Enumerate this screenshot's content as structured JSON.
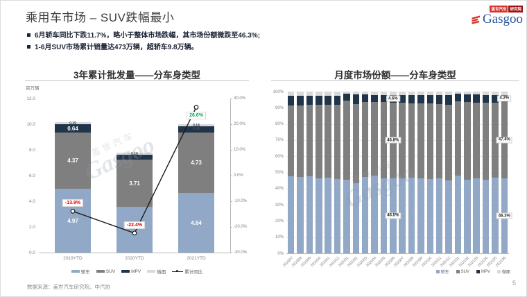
{
  "slide": {
    "title": "乘用车市场 – SUV跌幅最小",
    "bullets": [
      "6月轿车同比下跌11.7%，略小于整体市场跌幅，其市场份额微跌至46.3%;",
      "1-6月SUV市场累计销量达473万辆，超轿车9.8万辆。"
    ],
    "logo": {
      "brand": "Gasgoo",
      "tag1": "盖世汽车",
      "tag2": "研究院"
    },
    "watermark_cn": "盖世汽车",
    "watermark_en": "Gasgoo",
    "footer": {
      "source": "数据来源：盖世汽车研究院、中汽协",
      "page": "5"
    }
  },
  "colors": {
    "sedan": "#91a8c6",
    "suv": "#7f7f7f",
    "mpv": "#20344a",
    "minivan": "#d9d9d9",
    "line": "#1a1a1a",
    "negative": "#e00000",
    "positive": "#00a551",
    "axis": "#b7b7b7",
    "gridline": "#ececec"
  },
  "chart_data": [
    {
      "type": "bar",
      "subtype": "stacked-with-line",
      "title": "3年累计批发量——分车身类型",
      "ylabel": "百万辆",
      "categories": [
        "2019YTD",
        "2020YTD",
        "2021YTD"
      ],
      "series": [
        {
          "name": "轿车",
          "color": "#91a8c6",
          "values": [
            4.97,
            3.55,
            4.64
          ],
          "labels": [
            "4.97",
            "",
            "4.64"
          ]
        },
        {
          "name": "SUV",
          "color": "#7f7f7f",
          "values": [
            4.37,
            3.71,
            4.73
          ],
          "labels": [
            "4.37",
            "3.71",
            "4.73"
          ]
        },
        {
          "name": "MPV",
          "color": "#20344a",
          "values": [
            0.64,
            0.34,
            0.45
          ],
          "labels": [
            "0.64",
            "0.34",
            "0.45"
          ]
        },
        {
          "name": "微面",
          "color": "#d9d9d9",
          "values": [
            0.19,
            0.16,
            0.18
          ],
          "labels": [
            "0.19",
            "0.16",
            "0.18"
          ]
        }
      ],
      "line_series": {
        "name": "累计同比",
        "values": [
          -13.9,
          -22.4,
          26.6
        ],
        "labels": [
          "-13.9%",
          "-22.4%",
          "26.6%"
        ]
      },
      "ylim": [
        0,
        12
      ],
      "y2lim": [
        -30,
        30
      ],
      "yticks": [
        "12.0",
        "10.0",
        "8.0",
        "6.0",
        "4.0",
        "2.0",
        "0.0"
      ],
      "y2ticks": [
        "30.0%",
        "20.0%",
        "10.0%",
        "0.0%",
        "-10.0%",
        "-20.0%",
        "-30.0%"
      ],
      "legend_position": "bottom",
      "grid": false
    },
    {
      "type": "bar",
      "subtype": "stacked-100pct",
      "title": "月度市场份额——分车身类型",
      "categories": [
        "201907",
        "201908",
        "201909",
        "201910",
        "201911",
        "201912",
        "202001",
        "202002",
        "202003",
        "202004",
        "202005",
        "202006",
        "202007",
        "202008",
        "202009",
        "202010",
        "202011",
        "202012",
        "202101",
        "202102",
        "202103",
        "202104",
        "202105",
        "202106"
      ],
      "series": [
        {
          "name": "轿车",
          "color": "#91a8c6",
          "values": [
            47.5,
            47.0,
            47.8,
            46.4,
            46.7,
            46.0,
            45.6,
            43.2,
            47.1,
            47.9,
            46.4,
            46.5,
            46.4,
            46.6,
            46.2,
            46.0,
            46.3,
            44.9,
            47.9,
            45.6,
            46.4,
            45.4,
            46.9,
            46.3
          ]
        },
        {
          "name": "SUV",
          "color": "#7f7f7f",
          "values": [
            44.0,
            44.6,
            43.9,
            45.4,
            45.1,
            45.7,
            48.7,
            49.1,
            46.4,
            45.7,
            47.0,
            46.8,
            46.7,
            46.2,
            46.4,
            46.6,
            46.1,
            47.0,
            46.2,
            47.9,
            46.9,
            47.9,
            46.1,
            47.4
          ]
        },
        {
          "name": "MPV",
          "color": "#20344a",
          "values": [
            5.9,
            5.8,
            5.8,
            5.7,
            5.7,
            5.8,
            4.2,
            5.9,
            4.6,
            4.4,
            4.5,
            4.6,
            4.8,
            5.1,
            5.3,
            5.3,
            5.5,
            5.9,
            4.4,
            4.7,
            4.8,
            4.7,
            4.8,
            4.2
          ]
        },
        {
          "name": "微面",
          "color": "#d9d9d9",
          "values": [
            2.6,
            2.6,
            2.5,
            2.5,
            2.5,
            2.5,
            1.5,
            1.8,
            1.9,
            2.0,
            2.1,
            2.1,
            2.1,
            2.1,
            2.1,
            2.1,
            2.1,
            2.2,
            1.5,
            1.8,
            1.9,
            2.0,
            2.2,
            2.1
          ]
        }
      ],
      "ylim": [
        0,
        100
      ],
      "yticks": [
        "100%",
        "90%",
        "80%",
        "70%",
        "60%",
        "50%",
        "40%",
        "30%",
        "20%",
        "10%",
        "0%"
      ],
      "annotations": [
        {
          "month": "202006",
          "series": "MPV",
          "text": "4.6%"
        },
        {
          "month": "202006",
          "series": "SUV",
          "text": "46.8%"
        },
        {
          "month": "202006",
          "series": "轿车",
          "text": "46.5%"
        },
        {
          "month": "202106",
          "series": "MPV",
          "text": "4.2%"
        },
        {
          "month": "202106",
          "series": "SUV",
          "text": "47.4%"
        },
        {
          "month": "202106",
          "series": "轿车",
          "text": "46.3%"
        }
      ],
      "legend_position": "bottom-right",
      "grid": true
    }
  ]
}
